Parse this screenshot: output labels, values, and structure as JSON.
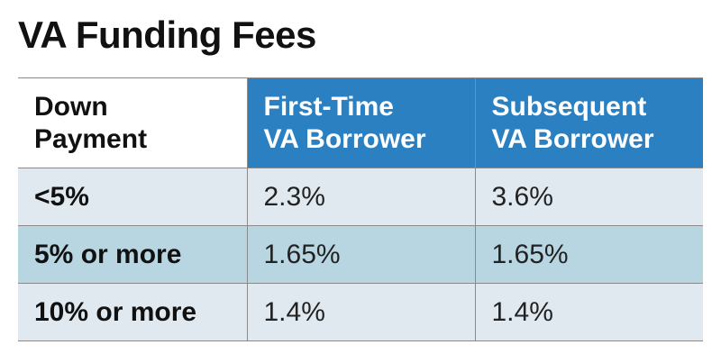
{
  "title": "VA Funding Fees",
  "headers": {
    "col1": [
      "Down",
      "Payment"
    ],
    "col2": [
      "First-Time",
      "VA Borrower"
    ],
    "col3": [
      "Subsequent",
      "VA Borrower"
    ]
  },
  "rows": [
    {
      "down_payment": "<5%",
      "first_time": "2.3%",
      "subsequent": "3.6%"
    },
    {
      "down_payment": "5% or more",
      "first_time": "1.65%",
      "subsequent": "1.65%"
    },
    {
      "down_payment": "10% or more",
      "first_time": "1.4%",
      "subsequent": "1.4%"
    }
  ],
  "colors": {
    "header_accent": "#2b80c2",
    "row_light": "#dfe9ef",
    "row_dark": "#b8d5e2",
    "border": "#8a8a8a"
  }
}
